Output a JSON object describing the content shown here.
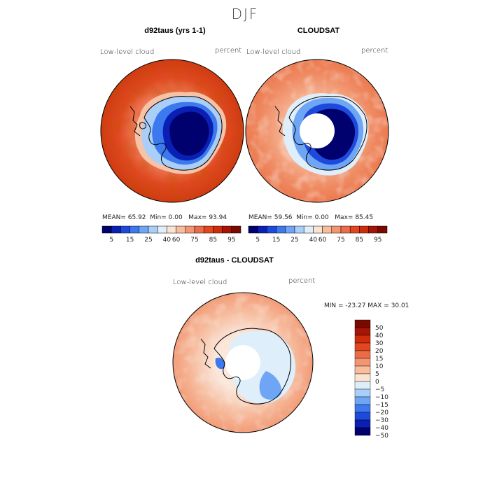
{
  "season_title": "DJF",
  "colors": {
    "palette_10": [
      "#00006e",
      "#0a1fb4",
      "#1e4adc",
      "#3c78ee",
      "#6ea6f5",
      "#a9cff8",
      "#dfeefb",
      "#fbe3d2",
      "#f7bd9d",
      "#f29570",
      "#ec6c47",
      "#e3471f",
      "#cd2d0a",
      "#a51404",
      "#780a00"
    ],
    "coast": "#000000"
  },
  "panels": [
    {
      "title": "d92taus (yrs 1-1)",
      "field_label": "Low-level cloud",
      "units_label": "percent",
      "stats": {
        "mean_label": "MEAN=",
        "mean": "65.92",
        "min_label": "Min=",
        "min": "0.00",
        "max_label": "Max=",
        "max": "93.94"
      },
      "has_pole_hole": false
    },
    {
      "title": "CLOUDSAT",
      "field_label": "Low-level cloud",
      "units_label": "percent",
      "stats": {
        "mean_label": "MEAN=",
        "mean": "59.56",
        "min_label": "Min=",
        "min": "0.00",
        "max_label": "Max=",
        "max": "85.45"
      },
      "has_pole_hole": true
    }
  ],
  "colorbar_top": {
    "tick_labels": [
      "5",
      "15",
      "25",
      "40",
      "60",
      "75",
      "85",
      "95"
    ]
  },
  "diff_panel": {
    "title": "d92taus - CLOUDSAT",
    "field_label": "Low-level cloud",
    "units_label": "percent",
    "minmax_text": "MIN = -23.27  MAX =  30.01",
    "colorbar_labels": [
      "50",
      "40",
      "30",
      "20",
      "15",
      "10",
      "5",
      "0",
      "−5",
      "−10",
      "−15",
      "−20",
      "−30",
      "−40",
      "−50"
    ]
  }
}
